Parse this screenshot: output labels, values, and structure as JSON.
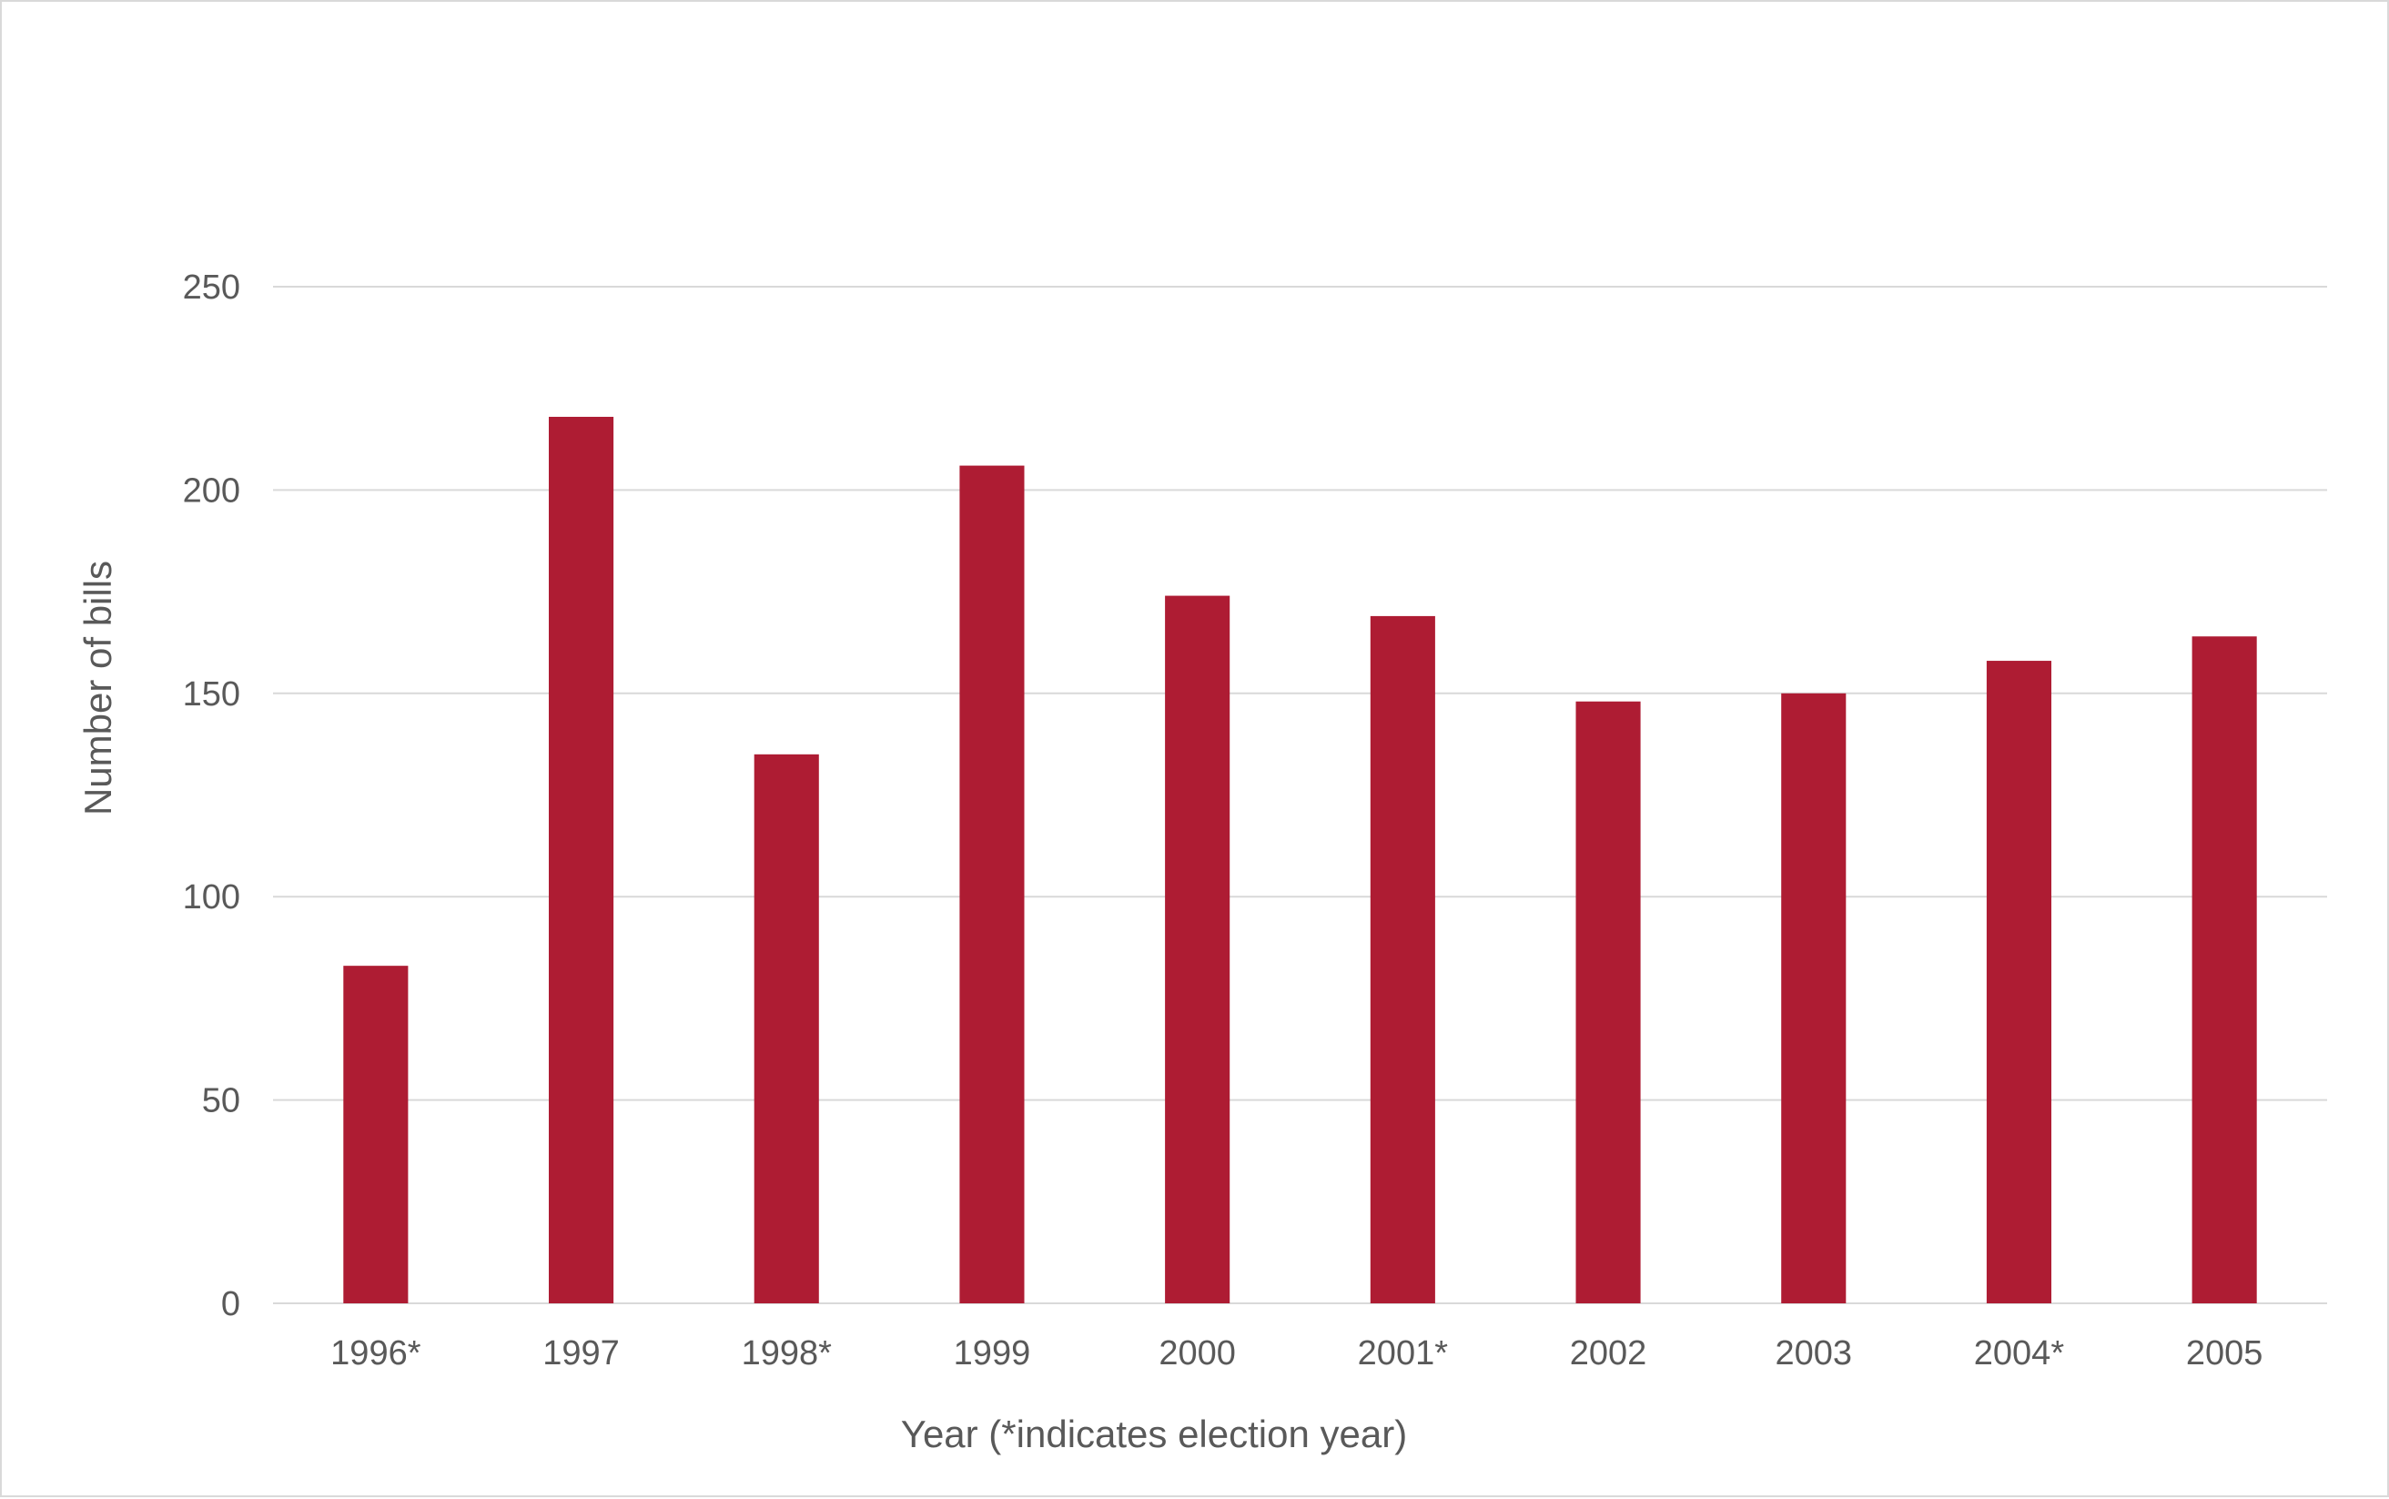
{
  "chart_data": {
    "type": "bar",
    "categories": [
      "1996*",
      "1997",
      "1998*",
      "1999",
      "2000",
      "2001*",
      "2002",
      "2003",
      "2004*",
      "2005"
    ],
    "values": [
      83,
      218,
      135,
      206,
      174,
      169,
      148,
      150,
      158,
      164
    ],
    "xlabel": "Year (*indicates election year)",
    "ylabel": "Number of bills",
    "ylim": [
      0,
      250
    ],
    "yticks": [
      "0",
      "50",
      "100",
      "150",
      "200",
      "250"
    ],
    "grid": true,
    "legend": "none",
    "colors": {
      "bar": "#AE1C33",
      "grid": "#d9d9d9",
      "text": "#595959"
    }
  }
}
